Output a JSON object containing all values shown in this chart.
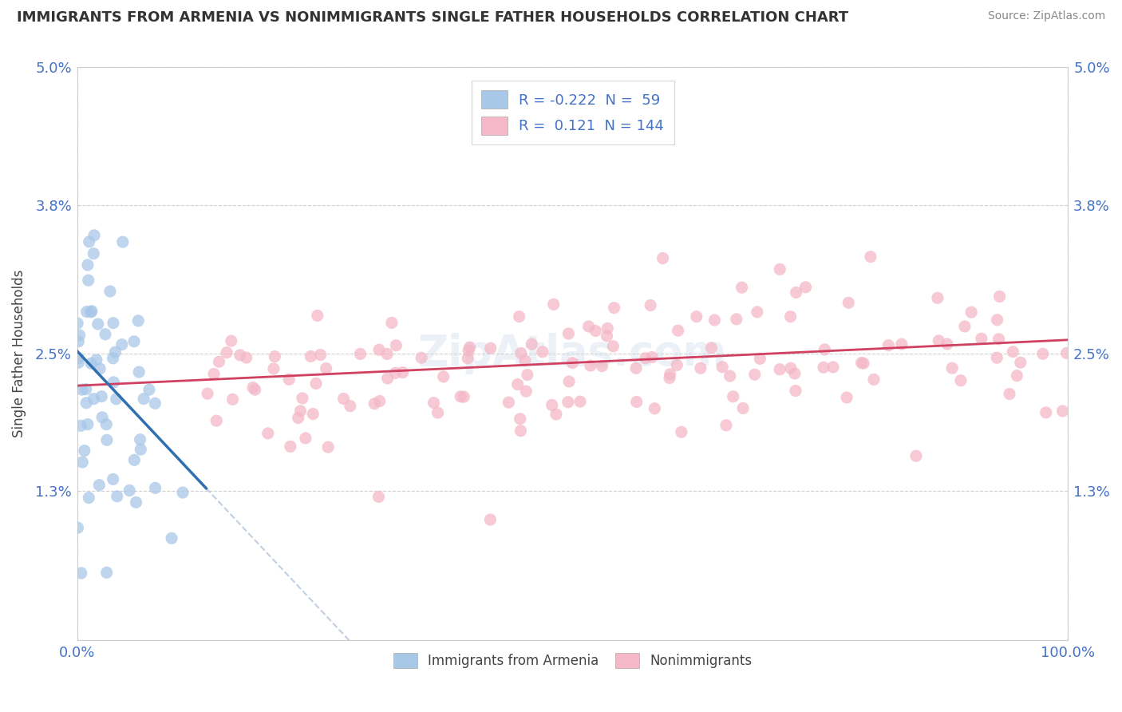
{
  "title": "IMMIGRANTS FROM ARMENIA VS NONIMMIGRANTS SINGLE FATHER HOUSEHOLDS CORRELATION CHART",
  "source": "Source: ZipAtlas.com",
  "ylabel": "Single Father Households",
  "legend_label_1": "Immigrants from Armenia",
  "legend_label_2": "Nonimmigrants",
  "R1": -0.222,
  "N1": 59,
  "R2": 0.121,
  "N2": 144,
  "xlim": [
    0,
    100
  ],
  "ylim": [
    0,
    5.0
  ],
  "yticks": [
    1.3,
    2.5,
    3.8,
    5.0
  ],
  "ytick_labels": [
    "1.3%",
    "2.5%",
    "3.8%",
    "5.0%"
  ],
  "xtick_labels": [
    "0.0%",
    "100.0%"
  ],
  "color_blue": "#a8c8e8",
  "color_pink": "#f4b8c8",
  "trend_blue": "#3070b0",
  "trend_pink": "#d04060",
  "dash_color": "#c0d0e0",
  "bg_color": "#ffffff",
  "grid_color": "#cccccc",
  "title_color": "#333333",
  "source_color": "#888888",
  "tick_color": "#4472c4",
  "ylabel_color": "#444444"
}
